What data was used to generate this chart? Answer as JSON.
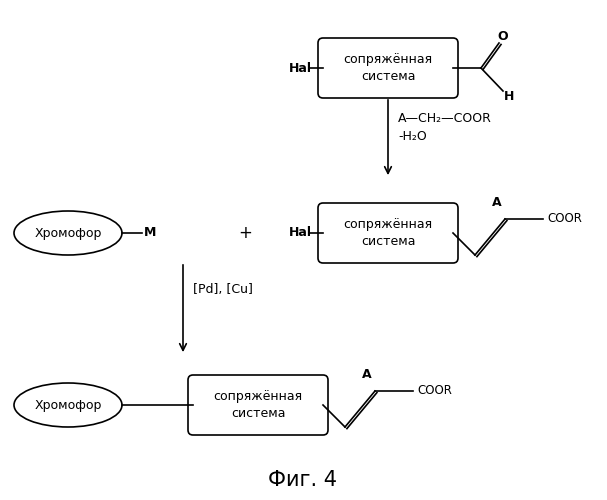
{
  "bg_color": "#ffffff",
  "fig_title": "Фиг. 4",
  "block1_text": "сопряжённая\nсистема",
  "block2_text": "сопряжённая\nсистема",
  "block3_text": "сопряжённая\nсистема",
  "chromophore_text": "Хромофор",
  "reaction1_reagent": "A—CH₂—COOR",
  "reaction1_condition": "-H₂O",
  "reaction2_condition": "[Pd], [Cu]",
  "aldehyde_O": "O",
  "aldehyde_H": "H",
  "hal_label": "Hal",
  "hal_label2": "Hal",
  "M_label": "M",
  "plus_label": "+",
  "A_label1": "A",
  "A_label2": "A",
  "COOR_label1": "COOR",
  "COOR_label2": "COOR",
  "fontsize_main": 9,
  "fontsize_title": 15,
  "lw": 1.2
}
